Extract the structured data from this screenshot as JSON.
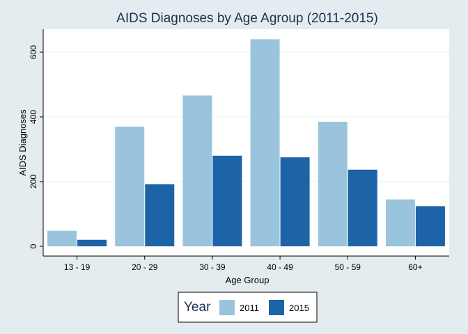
{
  "chart_data": {
    "type": "bar",
    "title": "AIDS Diagnoses by Age Agroup (2011-2015)",
    "xlabel": "Age Group",
    "ylabel": "AIDS Diagnoses",
    "categories": [
      "13 - 19",
      "20 - 29",
      "30 - 39",
      "40 - 49",
      "50 - 59",
      "60+"
    ],
    "series": [
      {
        "name": "2011",
        "color": "#9ac4dd",
        "values": [
          48,
          370,
          466,
          640,
          385,
          145
        ]
      },
      {
        "name": "2015",
        "color": "#1d63a8",
        "values": [
          20,
          192,
          280,
          275,
          237,
          124
        ]
      }
    ],
    "ylim": [
      0,
      695
    ],
    "yticks": [
      0,
      200,
      400,
      600
    ],
    "grid": true,
    "legend": {
      "title": "Year",
      "placement": "bottom-center"
    }
  }
}
